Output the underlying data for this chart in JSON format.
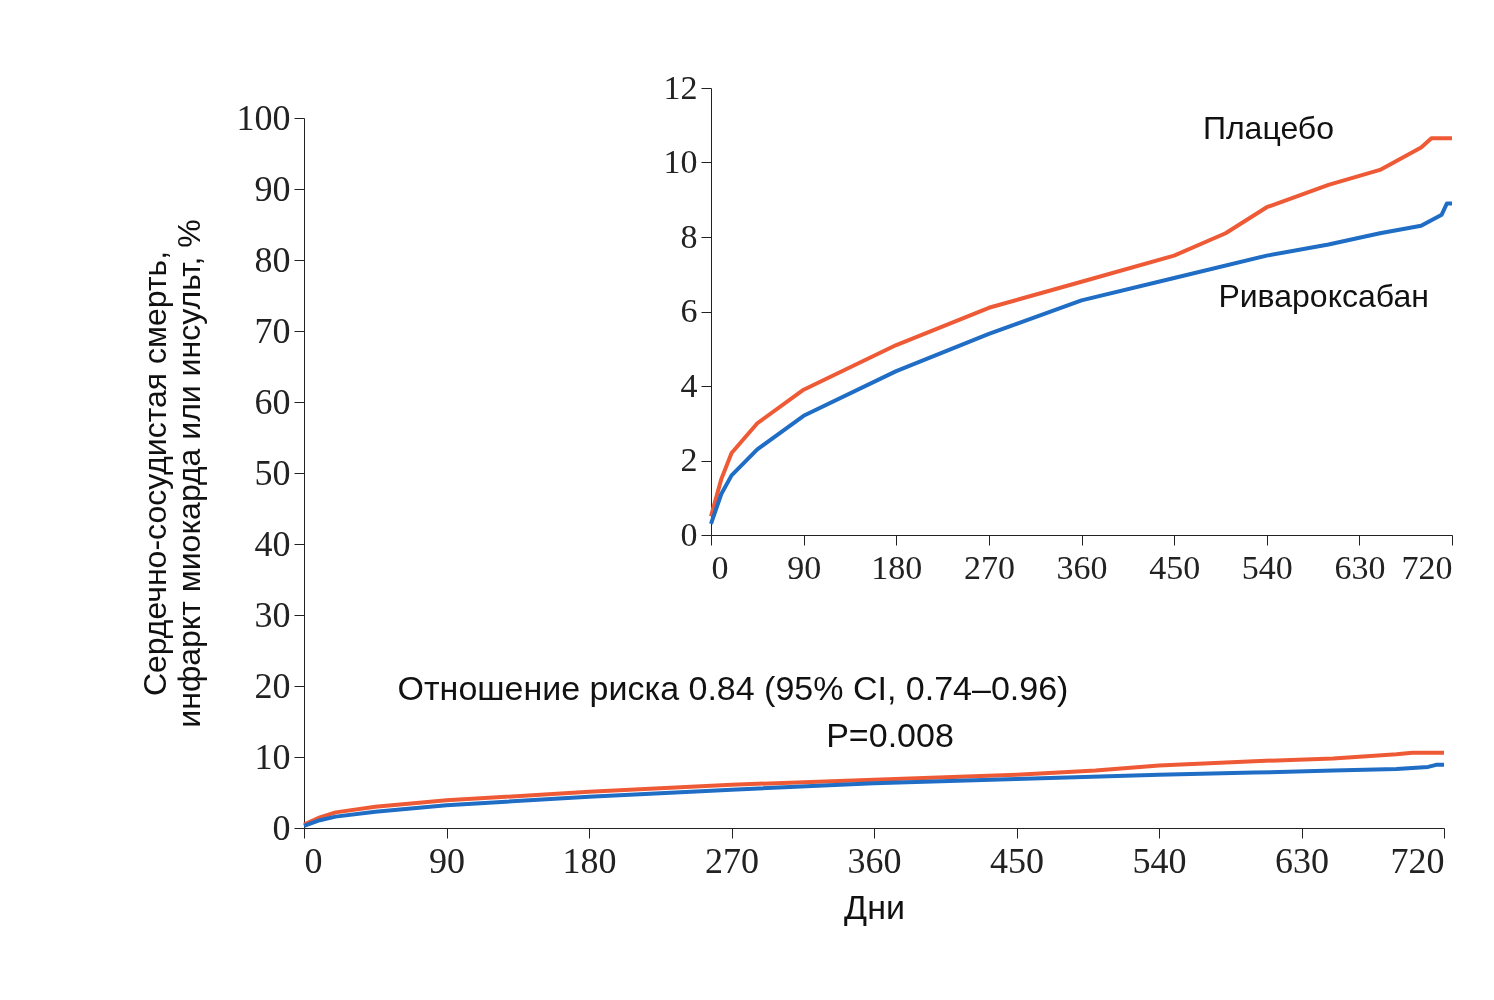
{
  "chart_data": [
    {
      "type": "line",
      "xlabel": "Дни",
      "ylabel": "Сердечно-сосудистая смерть, инфаркт миокарда или инсульт, %",
      "xlim": [
        0,
        720
      ],
      "xticks": [
        0,
        90,
        180,
        270,
        360,
        450,
        540,
        630,
        720
      ],
      "ylim": [
        0,
        100
      ],
      "yticks": [
        0,
        10,
        20,
        30,
        40,
        50,
        60,
        70,
        80,
        90,
        100
      ],
      "grid": false,
      "annotations": [
        "Отношение риска 0.84 (95% CI, 0.74–0.96)",
        "P=0.008"
      ],
      "series": [
        {
          "color": "#ef5a36",
          "x": [
            0,
            10,
            20,
            45,
            90,
            180,
            270,
            360,
            450,
            500,
            540,
            600,
            650,
            690,
            700,
            720
          ],
          "values": [
            0.5,
            1.5,
            2.2,
            3.0,
            3.9,
            5.1,
            6.1,
            6.8,
            7.5,
            8.1,
            8.8,
            9.4,
            9.8,
            10.4,
            10.6,
            10.6
          ]
        },
        {
          "color": "#1f6dc4",
          "x": [
            0,
            10,
            20,
            45,
            90,
            180,
            270,
            360,
            450,
            540,
            600,
            650,
            690,
            710,
            715,
            720
          ],
          "values": [
            0.3,
            1.1,
            1.6,
            2.3,
            3.2,
            4.4,
            5.4,
            6.3,
            6.9,
            7.5,
            7.8,
            8.1,
            8.3,
            8.6,
            8.9,
            8.9
          ]
        }
      ]
    },
    {
      "type": "line",
      "xlim": [
        0,
        720
      ],
      "xticks": [
        0,
        90,
        180,
        270,
        360,
        450,
        540,
        630,
        720
      ],
      "ylim": [
        0,
        12
      ],
      "yticks": [
        0,
        2,
        4,
        6,
        8,
        10,
        12
      ],
      "grid": false,
      "series": [
        {
          "name": "Плацебо",
          "color": "#ef5a36",
          "x": [
            0,
            10,
            20,
            45,
            90,
            180,
            270,
            360,
            450,
            500,
            540,
            600,
            650,
            690,
            700,
            720
          ],
          "values": [
            0.5,
            1.5,
            2.2,
            3.0,
            3.9,
            5.1,
            6.1,
            6.8,
            7.5,
            8.1,
            8.8,
            9.4,
            9.8,
            10.4,
            10.65,
            10.65
          ]
        },
        {
          "name": "Ривароксабан",
          "color": "#1f6dc4",
          "x": [
            0,
            10,
            20,
            45,
            90,
            180,
            270,
            360,
            450,
            540,
            600,
            650,
            690,
            710,
            715,
            720
          ],
          "values": [
            0.3,
            1.1,
            1.6,
            2.3,
            3.2,
            4.4,
            5.4,
            6.3,
            6.9,
            7.5,
            7.8,
            8.1,
            8.3,
            8.6,
            8.9,
            8.9
          ]
        }
      ]
    }
  ]
}
